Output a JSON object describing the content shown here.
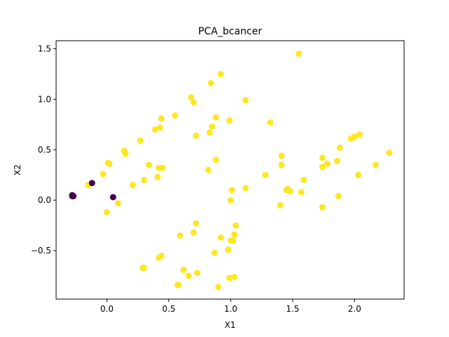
{
  "chart_data": {
    "type": "scatter",
    "title": "PCA_bcancer",
    "xlabel": "X1",
    "ylabel": "X2",
    "xlim": [
      -0.41,
      2.4
    ],
    "ylim": [
      -0.98,
      1.58
    ],
    "xticks": [
      "0.0",
      "0.5",
      "1.0",
      "1.5",
      "2.0"
    ],
    "xtick_values": [
      0.0,
      0.5,
      1.0,
      1.5,
      2.0
    ],
    "yticks": [
      "−0.5",
      "0.0",
      "0.5",
      "1.0",
      "1.5"
    ],
    "ytick_values": [
      -0.5,
      0.0,
      0.5,
      1.0,
      1.5
    ],
    "grid": false,
    "legend": "none",
    "colors": {
      "class_0": "#440154",
      "class_1": "#fde725"
    },
    "series": [
      {
        "class": 0,
        "points": [
          [
            -0.28,
            0.04
          ],
          [
            -0.28,
            0.05
          ],
          [
            -0.27,
            0.04
          ],
          [
            -0.12,
            0.17
          ],
          [
            0.05,
            0.03
          ]
        ]
      },
      {
        "class": 1,
        "points": [
          [
            1.55,
            1.45
          ],
          [
            0.92,
            1.25
          ],
          [
            0.84,
            1.16
          ],
          [
            0.68,
            1.02
          ],
          [
            0.7,
            0.97
          ],
          [
            1.12,
            0.99
          ],
          [
            0.55,
            0.84
          ],
          [
            0.44,
            0.81
          ],
          [
            0.88,
            0.82
          ],
          [
            0.99,
            0.79
          ],
          [
            1.32,
            0.77
          ],
          [
            0.85,
            0.73
          ],
          [
            0.43,
            0.72
          ],
          [
            0.39,
            0.7
          ],
          [
            0.83,
            0.67
          ],
          [
            0.72,
            0.64
          ],
          [
            2.04,
            0.65
          ],
          [
            2.0,
            0.63
          ],
          [
            1.97,
            0.61
          ],
          [
            0.27,
            0.59
          ],
          [
            1.88,
            0.52
          ],
          [
            0.14,
            0.49
          ],
          [
            0.15,
            0.46
          ],
          [
            2.28,
            0.47
          ],
          [
            1.41,
            0.44
          ],
          [
            1.74,
            0.42
          ],
          [
            0.88,
            0.4
          ],
          [
            1.86,
            0.39
          ],
          [
            1.78,
            0.36
          ],
          [
            0.01,
            0.37
          ],
          [
            0.02,
            0.36
          ],
          [
            0.34,
            0.35
          ],
          [
            1.41,
            0.35
          ],
          [
            1.74,
            0.33
          ],
          [
            2.17,
            0.35
          ],
          [
            0.42,
            0.32
          ],
          [
            0.45,
            0.32
          ],
          [
            0.82,
            0.3
          ],
          [
            -0.03,
            0.26
          ],
          [
            1.28,
            0.25
          ],
          [
            2.03,
            0.25
          ],
          [
            0.41,
            0.23
          ],
          [
            1.59,
            0.2
          ],
          [
            0.3,
            0.2
          ],
          [
            0.21,
            0.15
          ],
          [
            -0.15,
            0.15
          ],
          [
            1.12,
            0.12
          ],
          [
            1.01,
            0.1
          ],
          [
            1.46,
            0.11
          ],
          [
            1.48,
            0.09
          ],
          [
            1.45,
            0.1
          ],
          [
            1.57,
            0.08
          ],
          [
            1.87,
            0.04
          ],
          [
            1.0,
            0.0
          ],
          [
            0.09,
            -0.03
          ],
          [
            1.4,
            -0.05
          ],
          [
            1.74,
            -0.07
          ],
          [
            0.0,
            -0.12
          ],
          [
            0.72,
            -0.23
          ],
          [
            1.04,
            -0.25
          ],
          [
            0.7,
            -0.32
          ],
          [
            1.03,
            -0.34
          ],
          [
            0.59,
            -0.35
          ],
          [
            0.92,
            -0.37
          ],
          [
            1.0,
            -0.4
          ],
          [
            1.02,
            -0.4
          ],
          [
            0.98,
            -0.49
          ],
          [
            0.87,
            -0.52
          ],
          [
            0.44,
            -0.55
          ],
          [
            0.42,
            -0.57
          ],
          [
            0.29,
            -0.67
          ],
          [
            0.3,
            -0.67
          ],
          [
            0.62,
            -0.69
          ],
          [
            0.73,
            -0.72
          ],
          [
            0.66,
            -0.75
          ],
          [
            0.99,
            -0.77
          ],
          [
            1.03,
            -0.76
          ],
          [
            0.57,
            -0.84
          ],
          [
            0.58,
            -0.84
          ],
          [
            0.9,
            -0.86
          ]
        ]
      }
    ]
  }
}
